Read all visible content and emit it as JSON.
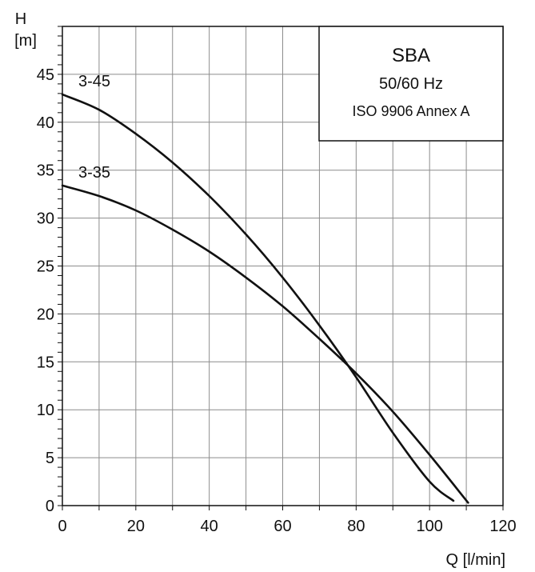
{
  "chart_data": {
    "type": "line",
    "title": "",
    "xlabel": "Q [l/min]",
    "ylabel_symbol": "H",
    "ylabel_unit": "[m]",
    "xlim": [
      0,
      120
    ],
    "ylim": [
      0,
      50
    ],
    "x_ticks": [
      0,
      20,
      40,
      60,
      80,
      100,
      120
    ],
    "y_ticks": [
      0,
      5,
      10,
      15,
      20,
      25,
      30,
      35,
      40,
      45
    ],
    "grid": true,
    "legend_box": {
      "placement": "top-right",
      "lines": [
        "SBA",
        "50/60  Hz",
        "ISO 9906 Annex A"
      ]
    },
    "series": [
      {
        "name": "3-45",
        "x": [
          0,
          10,
          20,
          30,
          40,
          50,
          60,
          70,
          80,
          90,
          100,
          106.5
        ],
        "y": [
          42.9,
          41.3,
          38.8,
          35.8,
          32.3,
          28.3,
          23.8,
          18.8,
          13.4,
          7.6,
          2.5,
          0.5
        ]
      },
      {
        "name": "3-35",
        "x": [
          0,
          10,
          20,
          30,
          40,
          50,
          60,
          70,
          80,
          90,
          100,
          110.5
        ],
        "y": [
          33.4,
          32.3,
          30.8,
          28.8,
          26.5,
          23.8,
          20.8,
          17.4,
          13.8,
          9.8,
          5.3,
          0.3
        ]
      }
    ]
  }
}
